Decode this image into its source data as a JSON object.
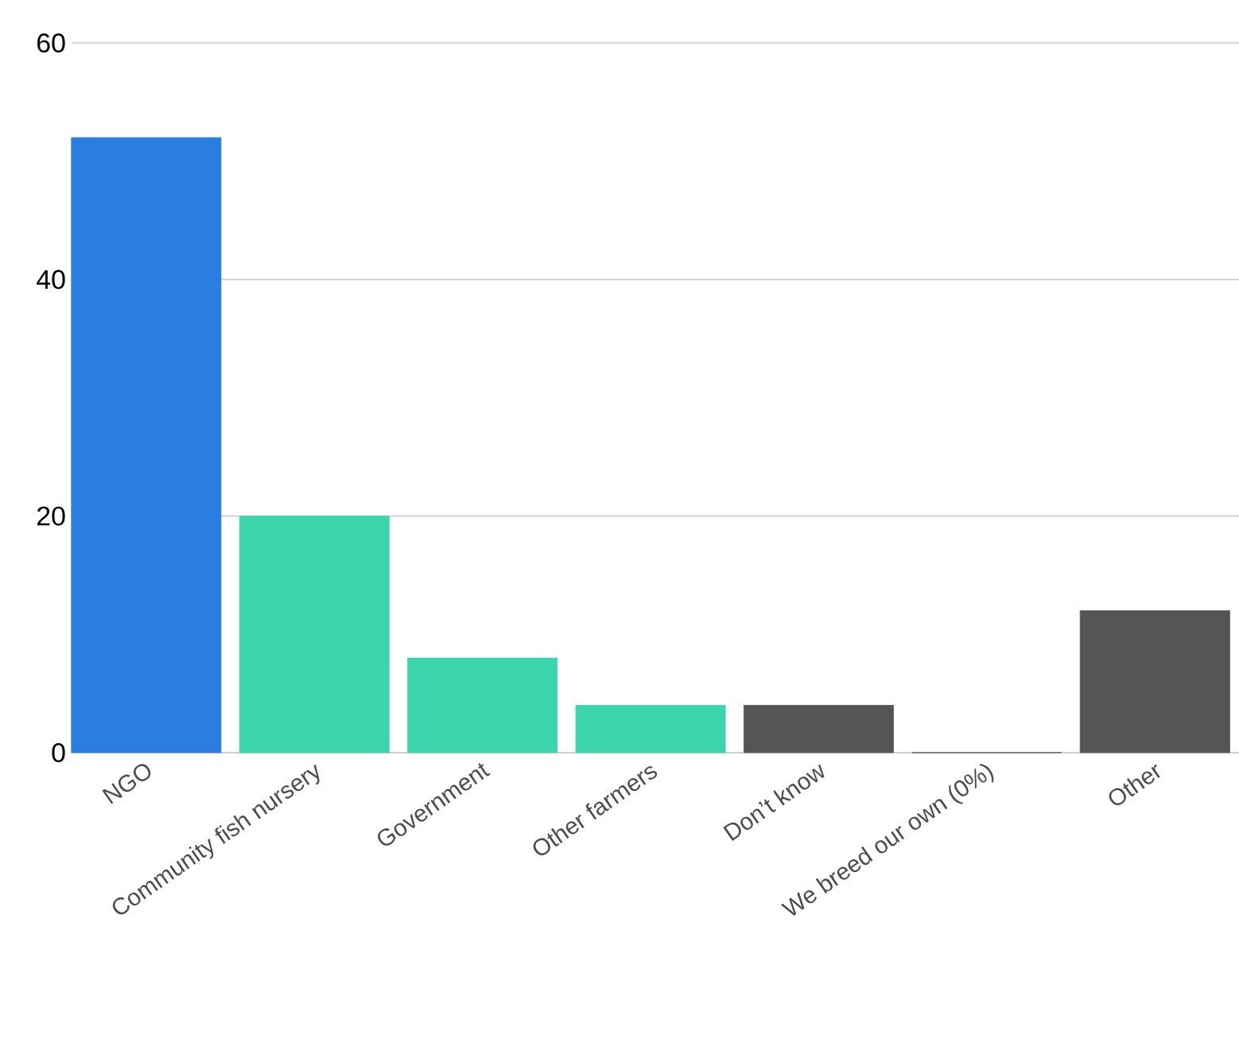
{
  "chart_data": {
    "type": "bar",
    "categories": [
      "NGO",
      "Community fish nursery",
      "Government",
      "Other farmers",
      "Don’t know",
      "We breed our own (0%)",
      "Other"
    ],
    "values": [
      52,
      20,
      8,
      4,
      4,
      0,
      12
    ],
    "colors": [
      "#2b7de1",
      "#3dd5ac",
      "#3dd5ac",
      "#3dd5ac",
      "#555555",
      "#555555",
      "#555555"
    ],
    "ylim": [
      0,
      60
    ],
    "yticks": [
      0,
      20,
      40,
      60
    ],
    "grid": "y"
  }
}
